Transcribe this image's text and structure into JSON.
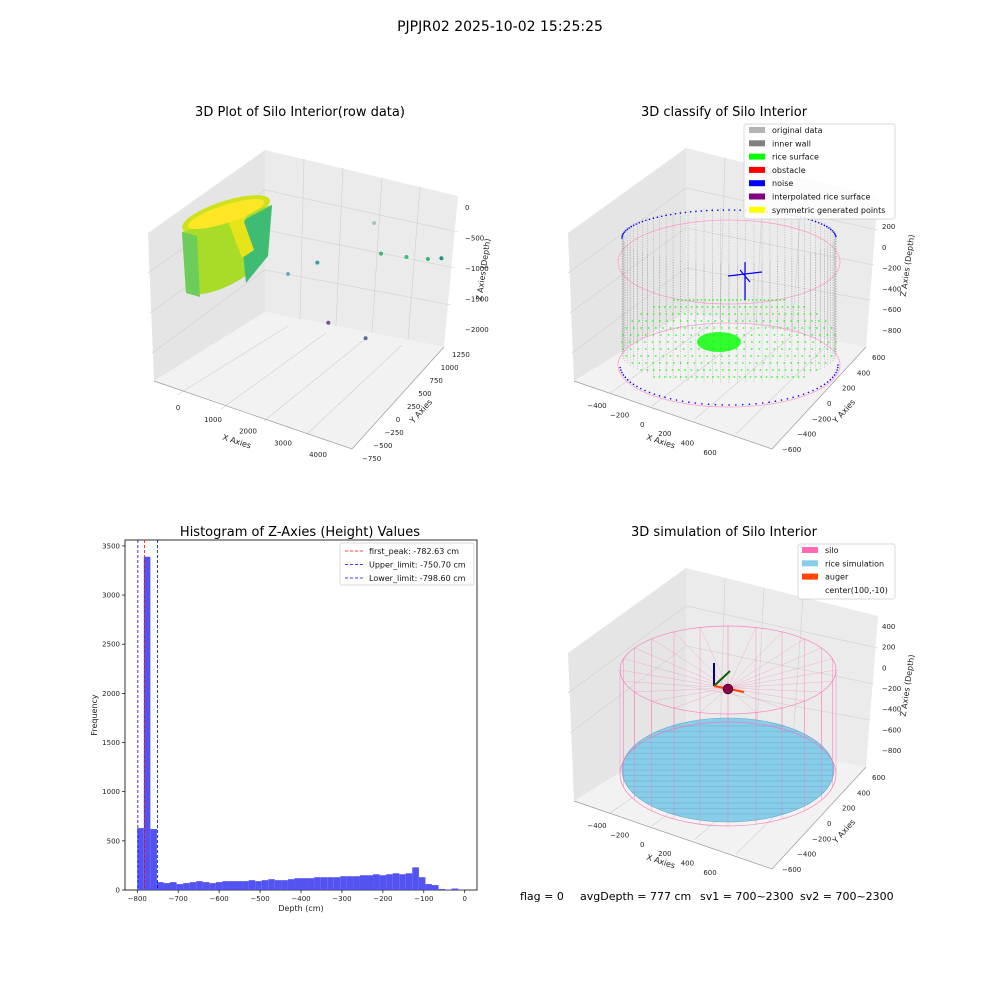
{
  "figure": {
    "suptitle": "PJPJR02 2025-10-02 15:25:25",
    "status": {
      "flag": "flag = 0",
      "avg_depth": "avgDepth = 777 cm",
      "sv1": "sv1 = 700~2300",
      "sv2": "sv2 = 700~2300"
    }
  },
  "chart_data": [
    {
      "type": "scatter",
      "title": "3D Plot of Silo Interior(row data)",
      "xlabel": "X Axies",
      "ylabel": "Y Axies",
      "zlabel": "Z Axies (Depth)",
      "x_ticks": [
        "0",
        "1000",
        "2000",
        "3000",
        "4000"
      ],
      "y_ticks": [
        "−750",
        "−500",
        "−250",
        "0",
        "250",
        "500",
        "750",
        "1000",
        "1250"
      ],
      "z_ticks": [
        "−2000",
        "−1500",
        "−1000",
        "−500",
        "0"
      ],
      "colormap": [
        "#440154",
        "#21918c",
        "#5ec962",
        "#fde725"
      ],
      "outliers": [
        {
          "x": 1050,
          "y": 1000,
          "z": -1100,
          "color": "#3b9cb4"
        },
        {
          "x": 1300,
          "y": 300,
          "z": -900,
          "color": "#6fa9c7"
        },
        {
          "x": 2200,
          "y": 1200,
          "z": -500,
          "color": "#9ec7c6"
        },
        {
          "x": 2800,
          "y": 900,
          "z": -650,
          "color": "#35b779"
        },
        {
          "x": 3300,
          "y": 1000,
          "z": -650,
          "color": "#3fbc73"
        },
        {
          "x": 3700,
          "y": 1100,
          "z": -650,
          "color": "#35b779"
        },
        {
          "x": 3900,
          "y": 1200,
          "z": -650,
          "color": "#21918c"
        },
        {
          "x": 2600,
          "y": 100,
          "z": -1200,
          "color": "#7e4e90"
        },
        {
          "x": 3400,
          "y": 200,
          "z": -1300,
          "color": "#5f6a9e"
        }
      ]
    },
    {
      "type": "scatter",
      "title": "3D classify of Silo Interior",
      "xlabel": "X Axies",
      "ylabel": "Y Axies",
      "zlabel": "Z Axies (Depth)",
      "x_ticks": [
        "−400",
        "−200",
        "0",
        "200",
        "400",
        "600"
      ],
      "y_ticks": [
        "−600",
        "−400",
        "−200",
        "0",
        "200",
        "400",
        "600"
      ],
      "z_ticks": [
        "−800",
        "−600",
        "−400",
        "−200",
        "0",
        "200"
      ],
      "legend_position": "upper-right",
      "legend": [
        {
          "label": "original data",
          "color": "#b3b3b3"
        },
        {
          "label": "inner wall",
          "color": "#808080"
        },
        {
          "label": "rice surface",
          "color": "#00ff00"
        },
        {
          "label": "obstacle",
          "color": "#ff0000"
        },
        {
          "label": "noise",
          "color": "#0000ff"
        },
        {
          "label": "interpolated rice surface",
          "color": "#800080"
        },
        {
          "label": "symmetric generated points",
          "color": "#ffff00"
        }
      ]
    },
    {
      "type": "bar",
      "title": "Histogram of Z-Axies (Height) Values",
      "xlabel": "Depth (cm)",
      "ylabel": "Frequency",
      "xlim": [
        -830,
        30
      ],
      "ylim": [
        0,
        3560
      ],
      "x_ticks": [
        -800,
        -700,
        -600,
        -500,
        -400,
        -300,
        -200,
        -100,
        0
      ],
      "y_ticks": [
        0,
        500,
        1000,
        1500,
        2000,
        2500,
        3000,
        3500
      ],
      "bar_color": "#4a4af0",
      "bin_start": -800,
      "bin_width": 16,
      "values": [
        630,
        3390,
        620,
        80,
        70,
        80,
        60,
        70,
        80,
        90,
        80,
        70,
        80,
        90,
        90,
        90,
        90,
        100,
        90,
        100,
        110,
        100,
        100,
        110,
        120,
        120,
        120,
        130,
        130,
        130,
        130,
        140,
        140,
        140,
        150,
        150,
        160,
        150,
        160,
        170,
        160,
        170,
        230,
        130,
        60,
        50,
        10,
        5,
        15,
        3
      ],
      "lines": [
        {
          "label": "first_peak: -782.63 cm",
          "x": -782.63,
          "color": "#ff0000"
        },
        {
          "label": "Upper_limit: -750.70 cm",
          "x": -750.7,
          "color": "#0000ff"
        },
        {
          "label": "Lower_limit: -798.60 cm",
          "x": -798.6,
          "color": "#0000ff"
        }
      ],
      "legend_position": "upper-right"
    },
    {
      "type": "scatter",
      "title": "3D simulation of Silo Interior",
      "xlabel": "X Axies",
      "ylabel": "Y Axies",
      "zlabel": "Z Axies (Depth)",
      "x_ticks": [
        "−400",
        "−200",
        "0",
        "200",
        "400",
        "600"
      ],
      "y_ticks": [
        "−600",
        "−400",
        "−200",
        "0",
        "200",
        "400",
        "600"
      ],
      "z_ticks": [
        "−800",
        "−600",
        "−400",
        "−200",
        "0",
        "200",
        "400"
      ],
      "legend_position": "upper-right",
      "legend": [
        {
          "label": "silo",
          "color": "#ff69b4"
        },
        {
          "label": "rice simulation",
          "color": "#87ceeb"
        },
        {
          "label": "auger",
          "color": "#ff4500"
        },
        {
          "label": "center(100,-10)",
          "color": ""
        }
      ]
    }
  ]
}
